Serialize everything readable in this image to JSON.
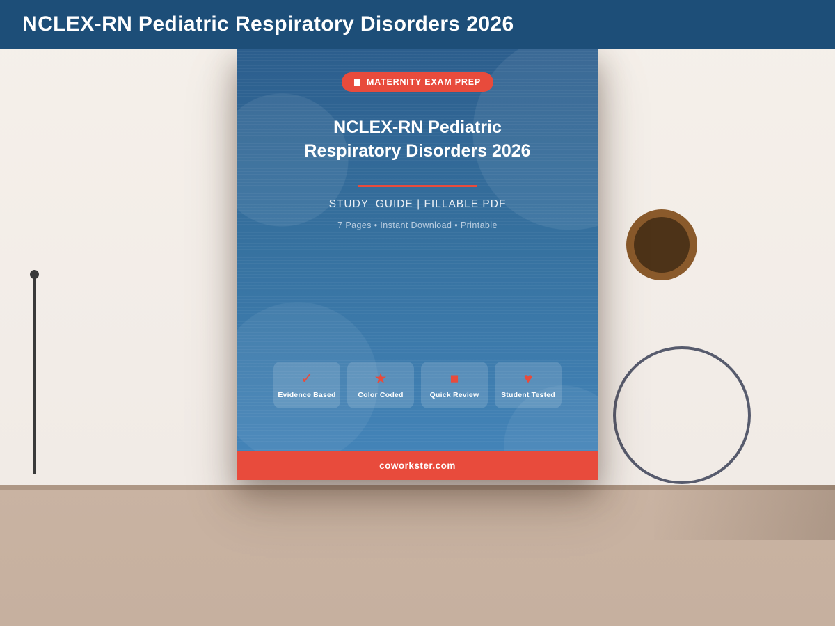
{
  "header": {
    "title": "NCLEX-RN Pediatric Respiratory Disorders 2026"
  },
  "cover": {
    "badge": {
      "icon": "square-icon",
      "label": "MATERNITY EXAM PREP"
    },
    "title_line1": "NCLEX-RN Pediatric",
    "title_line2": "Respiratory Disorders 2026",
    "subtitle": "STUDY_GUIDE  |  FILLABLE PDF",
    "meta": "7 Pages  •  Instant Download  •  Printable",
    "features": [
      {
        "icon": "checkmark-icon",
        "glyph": "✓",
        "label": "Evidence Based"
      },
      {
        "icon": "star-icon",
        "glyph": "★",
        "label": "Color Coded"
      },
      {
        "icon": "square-icon",
        "glyph": "■",
        "label": "Quick Review"
      },
      {
        "icon": "heart-icon",
        "glyph": "♥",
        "label": "Student Tested"
      }
    ],
    "footer_url": "coworkster.com"
  },
  "decorations": {
    "pin": "pin-icon",
    "coffee_cup": "coffee-cup-top-view",
    "circle": "circle-outline"
  },
  "colors": {
    "navy": "#1d4e78",
    "accent": "#e84b3c",
    "cover_top": "#2c5e8d",
    "cover_bottom": "#4586bb",
    "wall": "#f2ece7",
    "wall_light": "#f5f0ea",
    "desk": "#c9b3a2",
    "coffee_rim": "#8a5a2b",
    "coffee": "#4d3318",
    "ring": "#575b6d",
    "pin": "#3a3a3a"
  }
}
